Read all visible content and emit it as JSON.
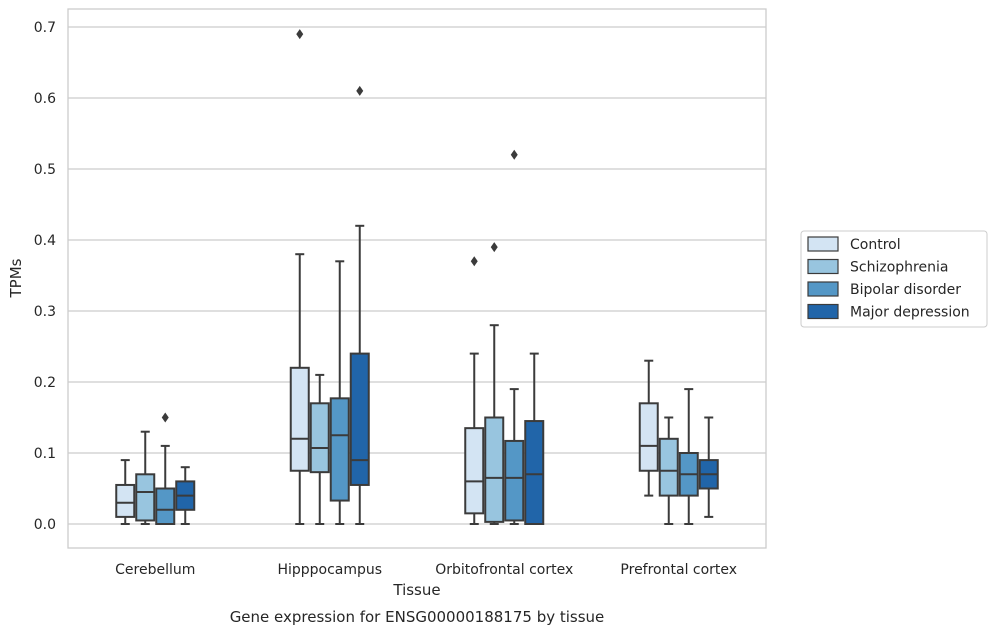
{
  "chart_data": {
    "type": "box",
    "caption": "Gene expression for ENSG00000188175 by tissue",
    "xlabel": "Tissue",
    "ylabel": "TPMs",
    "ylim": [
      -0.034,
      0.725
    ],
    "yticks": [
      0.0,
      0.1,
      0.2,
      0.3,
      0.4,
      0.5,
      0.6,
      0.7
    ],
    "ytick_labels": [
      "0.0",
      "0.1",
      "0.2",
      "0.3",
      "0.4",
      "0.5",
      "0.6",
      "0.7"
    ],
    "grid": "horizontal",
    "legend_position": "right",
    "categories": [
      "Cerebellum",
      "Hipppocampus",
      "Orbitofrontal cortex",
      "Prefrontal cortex"
    ],
    "series": [
      {
        "name": "Control",
        "color": "#d3e4f3",
        "boxes": [
          {
            "min": 0.0,
            "q1": 0.01,
            "median": 0.03,
            "q3": 0.055,
            "max": 0.09,
            "outliers": []
          },
          {
            "min": 0.0,
            "q1": 0.075,
            "median": 0.12,
            "q3": 0.22,
            "max": 0.38,
            "outliers": [
              0.69
            ]
          },
          {
            "min": 0.0,
            "q1": 0.015,
            "median": 0.06,
            "q3": 0.135,
            "max": 0.24,
            "outliers": [
              0.37
            ]
          },
          {
            "min": 0.04,
            "q1": 0.075,
            "median": 0.11,
            "q3": 0.17,
            "max": 0.23,
            "outliers": []
          }
        ]
      },
      {
        "name": "Schizophrenia",
        "color": "#98c5df",
        "boxes": [
          {
            "min": 0.0,
            "q1": 0.005,
            "median": 0.045,
            "q3": 0.07,
            "max": 0.13,
            "outliers": []
          },
          {
            "min": 0.0,
            "q1": 0.073,
            "median": 0.107,
            "q3": 0.17,
            "max": 0.21,
            "outliers": []
          },
          {
            "min": 0.0,
            "q1": 0.003,
            "median": 0.065,
            "q3": 0.15,
            "max": 0.28,
            "outliers": [
              0.39
            ]
          },
          {
            "min": 0.0,
            "q1": 0.04,
            "median": 0.075,
            "q3": 0.12,
            "max": 0.15,
            "outliers": []
          }
        ]
      },
      {
        "name": "Bipolar disorder",
        "color": "#5497c6",
        "boxes": [
          {
            "min": 0.0,
            "q1": 0.0,
            "median": 0.02,
            "q3": 0.05,
            "max": 0.11,
            "outliers": [
              0.15
            ]
          },
          {
            "min": 0.0,
            "q1": 0.033,
            "median": 0.125,
            "q3": 0.177,
            "max": 0.37,
            "outliers": []
          },
          {
            "min": 0.0,
            "q1": 0.005,
            "median": 0.065,
            "q3": 0.117,
            "max": 0.19,
            "outliers": [
              0.52
            ]
          },
          {
            "min": 0.0,
            "q1": 0.04,
            "median": 0.07,
            "q3": 0.1,
            "max": 0.19,
            "outliers": []
          }
        ]
      },
      {
        "name": "Major depression",
        "color": "#2165a9",
        "boxes": [
          {
            "min": 0.0,
            "q1": 0.02,
            "median": 0.04,
            "q3": 0.06,
            "max": 0.08,
            "outliers": []
          },
          {
            "min": 0.0,
            "q1": 0.055,
            "median": 0.09,
            "q3": 0.24,
            "max": 0.42,
            "outliers": [
              0.61
            ]
          },
          {
            "min": 0.0,
            "q1": 0.0,
            "median": 0.07,
            "q3": 0.145,
            "max": 0.24,
            "outliers": []
          },
          {
            "min": 0.01,
            "q1": 0.05,
            "median": 0.07,
            "q3": 0.09,
            "max": 0.15,
            "outliers": []
          }
        ]
      }
    ]
  }
}
